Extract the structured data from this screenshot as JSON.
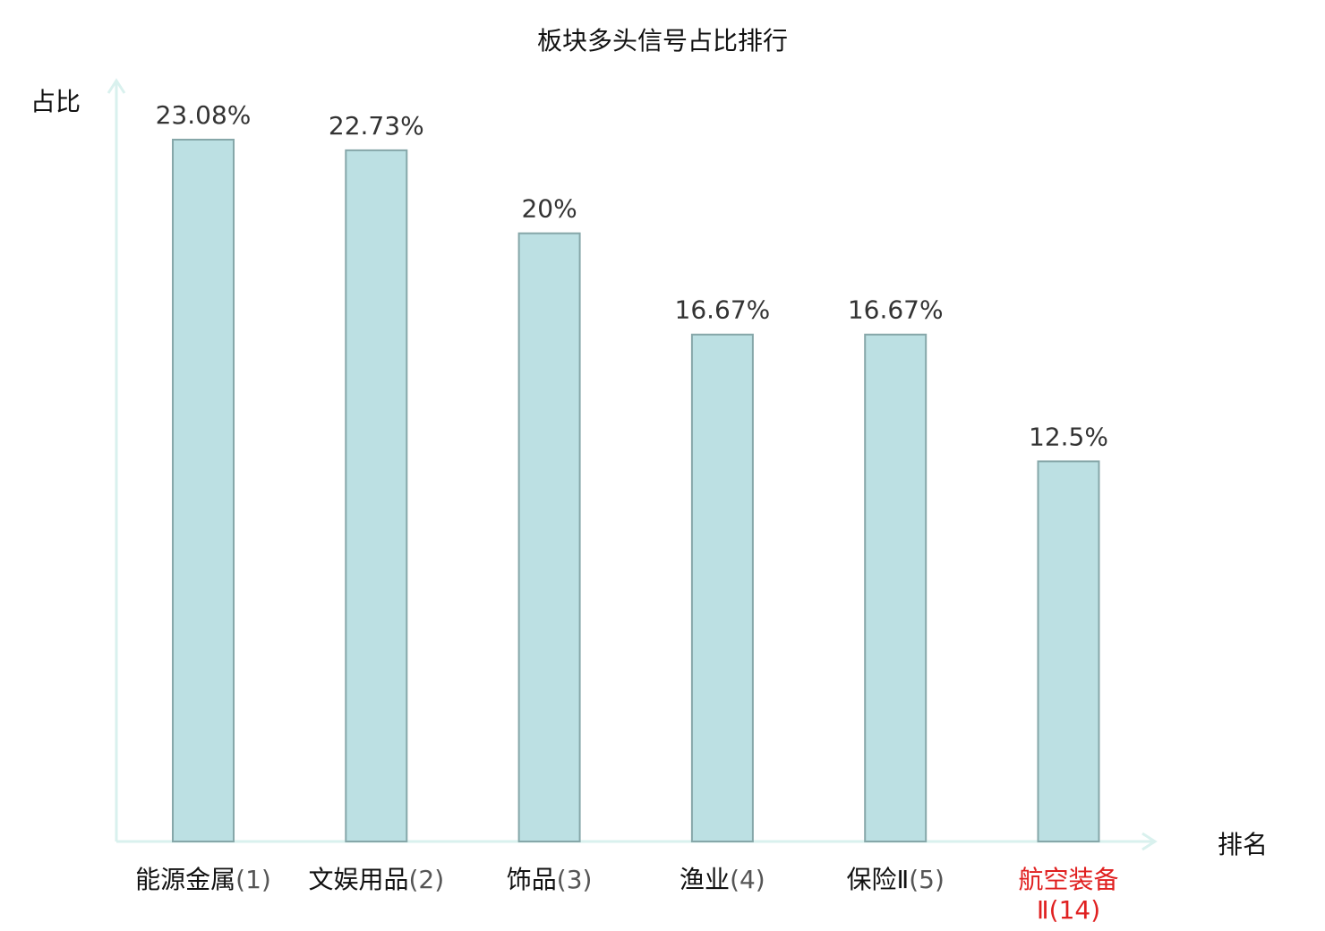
{
  "chart_data": {
    "type": "bar",
    "title": "板块多头信号占比排行",
    "ylabel": "占比",
    "xlabel": "排名",
    "categories": [
      "能源金属",
      "文娱用品",
      "饰品",
      "渔业",
      "保险Ⅱ",
      "航空装备Ⅱ"
    ],
    "ranks": [
      "(1)",
      "(2)",
      "(3)",
      "(4)",
      "(5)",
      "(14)"
    ],
    "values": [
      23.08,
      22.73,
      20,
      16.67,
      16.67,
      12.5
    ],
    "value_labels": [
      "23.08%",
      "22.73%",
      "20%",
      "16.67%",
      "16.67%",
      "12.5%"
    ],
    "highlight_index": 5,
    "ylim": [
      0,
      26.5
    ],
    "grid": false,
    "colors": {
      "bar_fill": "#bce0e3",
      "bar_stroke": "#86a7a9",
      "axis": "#d9f1ee",
      "highlight_text": "#e02020"
    }
  }
}
